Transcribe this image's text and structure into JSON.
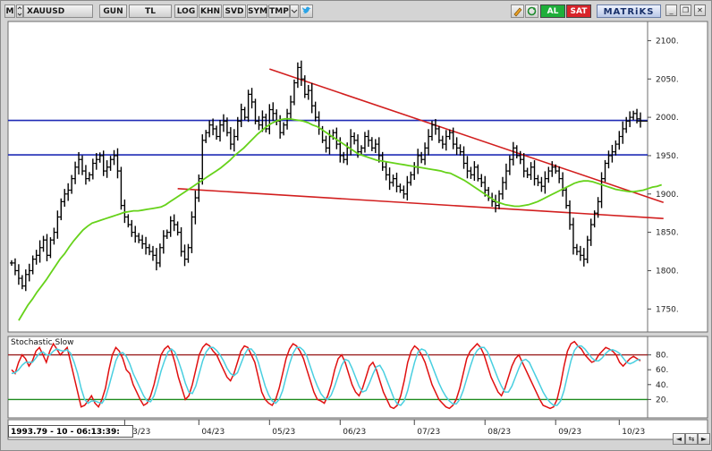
{
  "toolbar": {
    "menu_label": "M",
    "symbol": "XAUUSD",
    "buttons": [
      "GUN",
      "TL",
      "LOG",
      "KHN",
      "SVD",
      "SYM",
      "TMP"
    ],
    "status_al": "AL",
    "status_sat": "SAT",
    "brand": "MATRiKS",
    "colors": {
      "al": "#1fae3a",
      "sat": "#d8242a",
      "twitter": "#2aa3e6"
    }
  },
  "window_controls": [
    "minimize-icon",
    "restore-icon",
    "close-icon"
  ],
  "indicator": {
    "label": "Stochastic,Slow"
  },
  "status_readout": "1993.79 - 10 - 06:13:39:",
  "chart_data": [
    {
      "type": "candlestick",
      "title": "",
      "xlabel": "",
      "ylabel": "",
      "ylim": [
        1720,
        2125
      ],
      "yticks": [
        1750,
        1800,
        1850,
        1900,
        1950,
        2000,
        2050,
        2100
      ],
      "ytick_labels": [
        "1750.",
        "1800.",
        "1850.",
        "1900.",
        "1950.",
        "2000.",
        "2050.",
        "2100."
      ],
      "x_labels": [
        "03/23",
        "04/23",
        "05/23",
        "06/23",
        "07/23",
        "08/23",
        "09/23",
        "10/23"
      ],
      "x_label_index": [
        32,
        53,
        73,
        93,
        114,
        134,
        154,
        172
      ],
      "colors": {
        "bars": "#000000",
        "moving_average": "#66d21a",
        "horizontal_levels": "#1f2bb5",
        "trendlines": "#d21e1e"
      },
      "close": [
        1810,
        1800,
        1790,
        1780,
        1795,
        1800,
        1815,
        1820,
        1830,
        1840,
        1820,
        1840,
        1850,
        1870,
        1890,
        1900,
        1905,
        1920,
        1935,
        1945,
        1930,
        1920,
        1925,
        1940,
        1945,
        1950,
        1930,
        1935,
        1945,
        1950,
        1930,
        1885,
        1870,
        1860,
        1850,
        1845,
        1840,
        1835,
        1830,
        1825,
        1820,
        1810,
        1830,
        1845,
        1850,
        1865,
        1860,
        1850,
        1825,
        1815,
        1830,
        1870,
        1895,
        1920,
        1970,
        1980,
        1990,
        1985,
        1975,
        1990,
        1995,
        1980,
        1965,
        1975,
        1995,
        2010,
        2000,
        2030,
        2020,
        1995,
        1990,
        2000,
        1985,
        2010,
        2005,
        1995,
        1980,
        1990,
        2005,
        2020,
        2045,
        2065,
        2050,
        2030,
        2035,
        2015,
        2000,
        1985,
        1970,
        1960,
        1975,
        1980,
        1965,
        1950,
        1945,
        1960,
        1975,
        1970,
        1955,
        1960,
        1975,
        1970,
        1960,
        1965,
        1950,
        1935,
        1925,
        1915,
        1920,
        1910,
        1905,
        1900,
        1915,
        1925,
        1935,
        1950,
        1945,
        1960,
        1975,
        1990,
        1985,
        1970,
        1965,
        1975,
        1980,
        1965,
        1960,
        1955,
        1940,
        1930,
        1925,
        1935,
        1920,
        1915,
        1905,
        1895,
        1890,
        1885,
        1900,
        1915,
        1930,
        1945,
        1960,
        1950,
        1945,
        1930,
        1925,
        1935,
        1920,
        1915,
        1910,
        1920,
        1930,
        1935,
        1930,
        1920,
        1905,
        1885,
        1860,
        1830,
        1825,
        1820,
        1815,
        1840,
        1860,
        1875,
        1890,
        1920,
        1940,
        1950,
        1955,
        1965,
        1975,
        1985,
        1995,
        2000,
        2005,
        1998,
        1995
      ],
      "ma": [
        1735,
        1745,
        1755,
        1763,
        1772,
        1780,
        1788,
        1797,
        1806,
        1815,
        1822,
        1831,
        1839,
        1846,
        1853,
        1858,
        1862,
        1864,
        1866,
        1868,
        1870,
        1872,
        1874,
        1876,
        1877,
        1878,
        1878,
        1879,
        1880,
        1881,
        1882,
        1883,
        1886,
        1890,
        1894,
        1898,
        1902,
        1906,
        1910,
        1914,
        1918,
        1922,
        1926,
        1930,
        1934,
        1939,
        1944,
        1950,
        1955,
        1960,
        1966,
        1972,
        1978,
        1983,
        1988,
        1992,
        1995,
        1997,
        1998,
        1998,
        1997,
        1996,
        1995,
        1993,
        1990,
        1988,
        1984,
        1980,
        1976,
        1972,
        1968,
        1964,
        1960,
        1956,
        1952,
        1950,
        1948,
        1946,
        1944,
        1943,
        1942,
        1941,
        1940,
        1939,
        1938,
        1937,
        1936,
        1935,
        1934,
        1933,
        1932,
        1931,
        1930,
        1928,
        1927,
        1924,
        1921,
        1918,
        1914,
        1910,
        1906,
        1902,
        1898,
        1894,
        1890,
        1888,
        1886,
        1885,
        1884,
        1884,
        1885,
        1886,
        1888,
        1890,
        1893,
        1896,
        1899,
        1902,
        1905,
        1908,
        1911,
        1914,
        1916,
        1917,
        1917,
        1916,
        1914,
        1912,
        1910,
        1908,
        1906,
        1905,
        1904,
        1903,
        1903,
        1904,
        1905,
        1907,
        1909,
        1910,
        1912
      ],
      "ma_start_index": 2,
      "horizontal_levels": [
        1996,
        1951
      ],
      "trendlines": [
        {
          "name": "resistance",
          "points": [
            [
              73,
              2063
            ],
            [
              183,
              1889
            ]
          ]
        },
        {
          "name": "support",
          "points": [
            [
              47,
              1907
            ],
            [
              183,
              1868
            ]
          ]
        }
      ]
    },
    {
      "type": "line",
      "title": "",
      "ylim": [
        0,
        100
      ],
      "yticks": [
        20,
        40,
        60,
        80
      ],
      "ytick_labels": [
        "20.",
        "40.",
        "60.",
        "80."
      ],
      "hlines": [
        {
          "value": 80,
          "color": "#9a1f1f"
        },
        {
          "value": 20,
          "color": "#1e8a1e"
        }
      ],
      "series": [
        {
          "color": "#e01010",
          "values": [
            60,
            55,
            70,
            80,
            75,
            65,
            72,
            85,
            90,
            80,
            70,
            85,
            95,
            88,
            80,
            85,
            90,
            70,
            50,
            30,
            10,
            12,
            18,
            25,
            15,
            10,
            20,
            35,
            60,
            80,
            90,
            85,
            75,
            60,
            55,
            40,
            30,
            20,
            12,
            15,
            25,
            40,
            60,
            80,
            88,
            92,
            85,
            70,
            50,
            35,
            20,
            25,
            40,
            60,
            80,
            90,
            95,
            92,
            85,
            80,
            70,
            60,
            50,
            45,
            55,
            70,
            85,
            92,
            90,
            80,
            70,
            50,
            30,
            20,
            15,
            12,
            20,
            35,
            55,
            75,
            88,
            95,
            92,
            85,
            75,
            60,
            45,
            30,
            20,
            18,
            15,
            25,
            40,
            60,
            75,
            80,
            70,
            55,
            40,
            30,
            25,
            35,
            50,
            65,
            70,
            60,
            45,
            30,
            20,
            10,
            8,
            12,
            25,
            45,
            70,
            85,
            92,
            88,
            80,
            70,
            55,
            40,
            30,
            20,
            15,
            10,
            8,
            12,
            20,
            35,
            55,
            75,
            85,
            90,
            95,
            90,
            80,
            65,
            50,
            40,
            30,
            25,
            35,
            50,
            65,
            75,
            80,
            70,
            60,
            50,
            40,
            30,
            20,
            12,
            10,
            8,
            10,
            20,
            40,
            65,
            85,
            95,
            98,
            92,
            88,
            80,
            75,
            70,
            72,
            80,
            85,
            90,
            88,
            85,
            80,
            70,
            65,
            70,
            75,
            78,
            75,
            72
          ]
        },
        {
          "color": "#49cfe0",
          "values": [
            55,
            56,
            60,
            66,
            70,
            70,
            70,
            76,
            82,
            84,
            80,
            80,
            85,
            88,
            86,
            85,
            87,
            82,
            70,
            55,
            35,
            20,
            15,
            18,
            18,
            16,
            15,
            22,
            38,
            55,
            72,
            82,
            83,
            78,
            68,
            55,
            45,
            35,
            25,
            18,
            17,
            25,
            40,
            58,
            72,
            84,
            88,
            84,
            72,
            58,
            42,
            30,
            28,
            38,
            55,
            72,
            84,
            90,
            90,
            86,
            80,
            72,
            62,
            55,
            52,
            56,
            68,
            80,
            88,
            88,
            82,
            70,
            54,
            38,
            26,
            18,
            15,
            20,
            32,
            50,
            68,
            82,
            90,
            90,
            86,
            78,
            64,
            50,
            38,
            28,
            22,
            20,
            26,
            38,
            52,
            66,
            74,
            72,
            62,
            50,
            38,
            30,
            32,
            42,
            54,
            64,
            66,
            58,
            46,
            34,
            22,
            14,
            12,
            18,
            32,
            52,
            70,
            84,
            88,
            86,
            78,
            66,
            54,
            42,
            32,
            24,
            18,
            14,
            14,
            20,
            32,
            48,
            64,
            78,
            86,
            90,
            90,
            84,
            72,
            60,
            48,
            38,
            30,
            30,
            38,
            50,
            62,
            72,
            74,
            70,
            60,
            50,
            40,
            30,
            22,
            16,
            12,
            12,
            18,
            32,
            52,
            72,
            86,
            92,
            92,
            88,
            82,
            76,
            72,
            72,
            76,
            82,
            86,
            87,
            85,
            82,
            76,
            70,
            68,
            70,
            73,
            74
          ]
        }
      ]
    }
  ]
}
